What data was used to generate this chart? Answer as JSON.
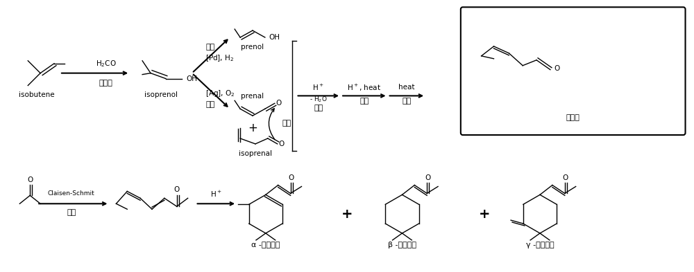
{
  "bg_color": "#ffffff",
  "fig_width": 10.0,
  "fig_height": 3.93,
  "dpi": 100,
  "fonts": {
    "label": 7.5,
    "chinese": 8.0,
    "small": 6.5
  },
  "top": {
    "isobutene": "isobutene",
    "arrow1_top": "H$_2$CO",
    "arrow1_bot": "普林斯",
    "isoprenol": "isoprenol",
    "iso_up1": "异构",
    "iso_up2": "[Pd], H$_2$",
    "prenol": "prenol",
    "iso_dn1": "[Ag], O$_2$",
    "iso_dn2": "氧化",
    "prenal": "prenal",
    "plus": "+",
    "isoprenal": "isoprenal",
    "zhuanwei": "转位",
    "h_plus": "H$^+$",
    "minus_h2o": "- H$_2$O",
    "suohe": "缩合",
    "h_plus_heat": "H$^+$, heat",
    "lieJie": "裂解",
    "heat": "heat",
    "chongpai": "重排",
    "citral": "柠樼醒"
  },
  "bottom": {
    "cs": "Claisen-Schmit",
    "suohe": "缩合",
    "h_plus": "H$^+$",
    "alpha": "α -紫罗兰酮",
    "beta": "β -紫罗兰酮",
    "gamma": "γ -紫罗兰酮"
  }
}
